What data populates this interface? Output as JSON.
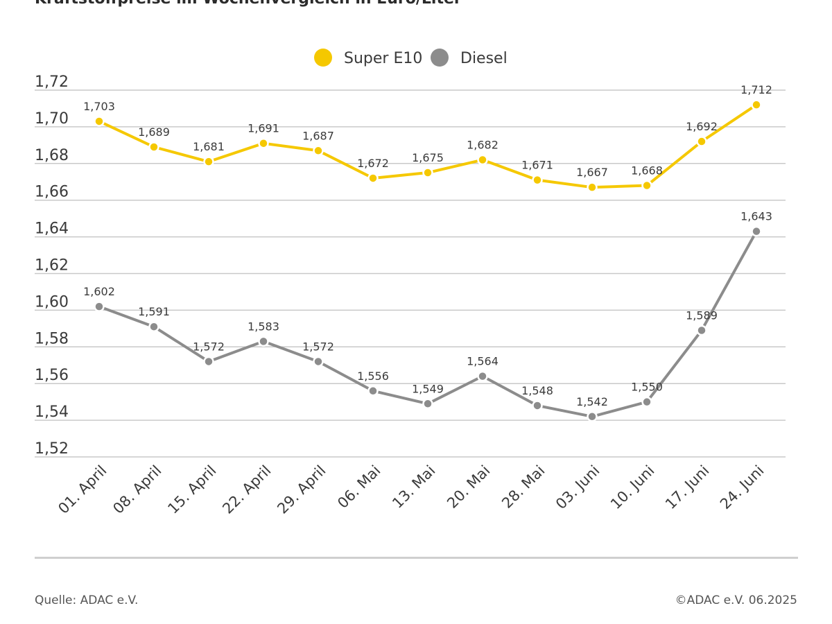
{
  "colors": {
    "e10": "#f5c800",
    "diesel": "#8c8c8c",
    "grid": "#c9c9c9",
    "text": "#3a3a3a"
  },
  "chart_data": {
    "type": "line",
    "title": "Kraftstoffpreise im Wochenvergleich in Euro/Liter",
    "xlabel": "",
    "ylabel": "",
    "ylim": [
      1.52,
      1.72
    ],
    "yticks": [
      "1,72",
      "1,70",
      "1,68",
      "1,66",
      "1,64",
      "1,62",
      "1,60",
      "1,58",
      "1,56",
      "1,54",
      "1,52"
    ],
    "ytick_values": [
      1.72,
      1.7,
      1.68,
      1.66,
      1.64,
      1.62,
      1.6,
      1.58,
      1.56,
      1.54,
      1.52
    ],
    "categories": [
      "01. April",
      "08. April",
      "15. April",
      "22. April",
      "29. April",
      "06. Mai",
      "13. Mai",
      "20. Mai",
      "28. Mai",
      "03. Juni",
      "10. Juni",
      "17. Juni",
      "24. Juni"
    ],
    "legend_position": "top-center",
    "series": [
      {
        "name": "Super E10",
        "color_key": "e10",
        "values": [
          1.703,
          1.689,
          1.681,
          1.691,
          1.687,
          1.672,
          1.675,
          1.682,
          1.671,
          1.667,
          1.668,
          1.692,
          1.712
        ],
        "labels": [
          "1,703",
          "1,689",
          "1,681",
          "1,691",
          "1,687",
          "1,672",
          "1,675",
          "1,682",
          "1,671",
          "1,667",
          "1,668",
          "1,692",
          "1,712"
        ]
      },
      {
        "name": "Diesel",
        "color_key": "diesel",
        "values": [
          1.602,
          1.591,
          1.572,
          1.583,
          1.572,
          1.556,
          1.549,
          1.564,
          1.548,
          1.542,
          1.55,
          1.589,
          1.643
        ],
        "labels": [
          "1,602",
          "1,591",
          "1,572",
          "1,583",
          "1,572",
          "1,556",
          "1,549",
          "1,564",
          "1,548",
          "1,542",
          "1,550",
          "1,589",
          "1,643"
        ]
      }
    ]
  },
  "footer": {
    "source": "Quelle: ADAC e.V.",
    "copyright": "©ADAC e.V. 06.2025"
  }
}
